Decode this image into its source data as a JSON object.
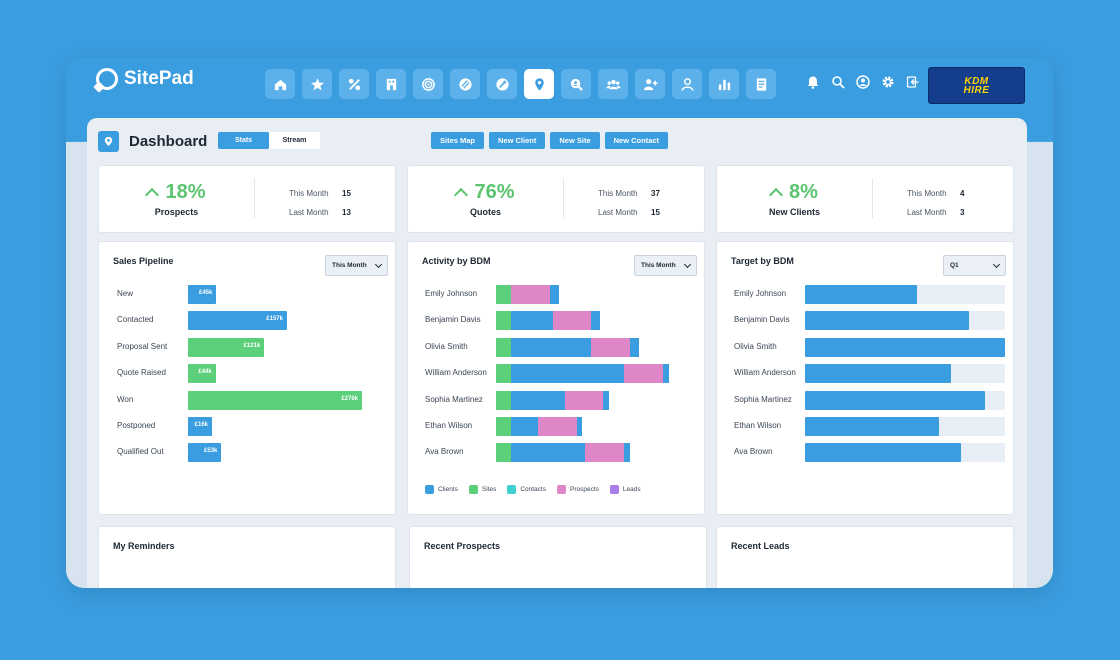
{
  "app": {
    "name": "SitePad"
  },
  "nav": [
    {
      "icon": "home-icon"
    },
    {
      "icon": "star-icon"
    },
    {
      "icon": "percent-icon"
    },
    {
      "icon": "building-icon"
    },
    {
      "icon": "target-icon"
    },
    {
      "icon": "tag-icon"
    },
    {
      "icon": "tools-icon"
    },
    {
      "icon": "map-pin-icon",
      "active": true
    },
    {
      "icon": "search-user-icon"
    },
    {
      "icon": "group-icon"
    },
    {
      "icon": "add-user-icon"
    },
    {
      "icon": "user-icon"
    },
    {
      "icon": "bar-chart-icon"
    },
    {
      "icon": "document-icon"
    }
  ],
  "top_icons": [
    "bell-icon",
    "search-icon",
    "account-icon",
    "gear-icon",
    "logout-icon"
  ],
  "brand": {
    "line1": "KDM",
    "line2": "HIRE"
  },
  "header": {
    "title": "Dashboard",
    "toggle": [
      "Stats",
      "Stream"
    ]
  },
  "actions": [
    "Sites Map",
    "New Client",
    "New Site",
    "New Contact"
  ],
  "stats": [
    {
      "pct": "18%",
      "label": "Prospects",
      "this_month_label": "This Month",
      "this_month": "15",
      "last_month_label": "Last Month",
      "last_month": "13"
    },
    {
      "pct": "76%",
      "label": "Quotes",
      "this_month_label": "This Month",
      "this_month": "37",
      "last_month_label": "Last Month",
      "last_month": "15"
    },
    {
      "pct": "8%",
      "label": "New Clients",
      "this_month_label": "This Month",
      "this_month": "4",
      "last_month_label": "Last Month",
      "last_month": "3"
    }
  ],
  "colors": {
    "blue": "#3a9de0",
    "green": "#5ccf7a",
    "pink": "#de86c8",
    "cyan": "#3fd0d0",
    "purple": "#a97ee6",
    "track": "#e8eef5"
  },
  "pipeline": {
    "title": "Sales Pipeline",
    "period": "This Month",
    "max": 276,
    "rows": [
      {
        "label": "New",
        "value": 45,
        "display": "£45k",
        "color": "blue"
      },
      {
        "label": "Contacted",
        "value": 157,
        "display": "£157k",
        "color": "blue"
      },
      {
        "label": "Proposal Sent",
        "value": 121,
        "display": "£121k",
        "color": "green"
      },
      {
        "label": "Quote Raised",
        "value": 44,
        "display": "£44k",
        "color": "green"
      },
      {
        "label": "Won",
        "value": 276,
        "display": "£276k",
        "color": "green"
      },
      {
        "label": "Postponed",
        "value": 16,
        "display": "£16k",
        "color": "blue"
      },
      {
        "label": "Qualified Out",
        "value": 53,
        "display": "£53k",
        "color": "blue"
      }
    ]
  },
  "activity": {
    "title": "Activity by BDM",
    "period": "This Month",
    "legend": [
      {
        "label": "Clients",
        "color": "blue"
      },
      {
        "label": "Sites",
        "color": "green"
      },
      {
        "label": "Contacts",
        "color": "cyan"
      },
      {
        "label": "Prospects",
        "color": "pink"
      },
      {
        "label": "Leads",
        "color": "purple"
      }
    ],
    "max": 58,
    "rows": [
      {
        "name": "Emily Johnson",
        "segments": [
          {
            "series": "Sites",
            "value": 5,
            "color": "green"
          },
          {
            "series": "Prospects",
            "value": 13,
            "color": "pink"
          },
          {
            "series": "Clients",
            "value": 3,
            "color": "blue"
          }
        ]
      },
      {
        "name": "Benjamin Davis",
        "segments": [
          {
            "series": "Sites",
            "value": 5,
            "color": "green"
          },
          {
            "series": "Clients",
            "value": 14,
            "color": "blue"
          },
          {
            "series": "Prospects",
            "value": 13,
            "color": "pink"
          },
          {
            "series": "Clients",
            "value": 3,
            "color": "blue"
          }
        ]
      },
      {
        "name": "Olivia Smith",
        "segments": [
          {
            "series": "Sites",
            "value": 5,
            "color": "green"
          },
          {
            "series": "Clients",
            "value": 27,
            "color": "blue"
          },
          {
            "series": "Prospects",
            "value": 13,
            "color": "pink"
          },
          {
            "series": "Clients",
            "value": 3,
            "color": "blue"
          }
        ]
      },
      {
        "name": "William Anderson",
        "segments": [
          {
            "series": "Sites",
            "value": 5,
            "color": "green"
          },
          {
            "series": "Clients",
            "value": 38,
            "color": "blue"
          },
          {
            "series": "Prospects",
            "value": 13,
            "color": "pink"
          },
          {
            "series": "Clients",
            "value": 2,
            "color": "blue"
          }
        ]
      },
      {
        "name": "Sophia Martinez",
        "segments": [
          {
            "series": "Sites",
            "value": 5,
            "color": "green"
          },
          {
            "series": "Clients",
            "value": 18,
            "color": "blue"
          },
          {
            "series": "Prospects",
            "value": 13,
            "color": "pink"
          },
          {
            "series": "Clients",
            "value": 2,
            "color": "blue"
          }
        ]
      },
      {
        "name": "Ethan Wilson",
        "segments": [
          {
            "series": "Sites",
            "value": 5,
            "color": "green"
          },
          {
            "series": "Clients",
            "value": 9,
            "color": "blue"
          },
          {
            "series": "Prospects",
            "value": 13,
            "color": "pink"
          },
          {
            "series": "Clients",
            "value": 2,
            "color": "blue"
          }
        ]
      },
      {
        "name": "Ava Brown",
        "segments": [
          {
            "series": "Sites",
            "value": 5,
            "color": "green"
          },
          {
            "series": "Clients",
            "value": 25,
            "color": "blue"
          },
          {
            "series": "Prospects",
            "value": 13,
            "color": "pink"
          },
          {
            "series": "Clients",
            "value": 2,
            "color": "blue"
          }
        ]
      }
    ]
  },
  "target": {
    "title": "Target by BDM",
    "period": "Q1",
    "rows": [
      {
        "name": "Emily Johnson",
        "progress": 0.56
      },
      {
        "name": "Benjamin Davis",
        "progress": 0.82
      },
      {
        "name": "Olivia Smith",
        "progress": 1.0
      },
      {
        "name": "William Anderson",
        "progress": 0.73
      },
      {
        "name": "Sophia Martinez",
        "progress": 0.9
      },
      {
        "name": "Ethan Wilson",
        "progress": 0.67
      },
      {
        "name": "Ava Brown",
        "progress": 0.78
      }
    ]
  },
  "bottom": {
    "reminders": "My Reminders",
    "prospects": "Recent Prospects",
    "leads": "Recent Leads"
  }
}
